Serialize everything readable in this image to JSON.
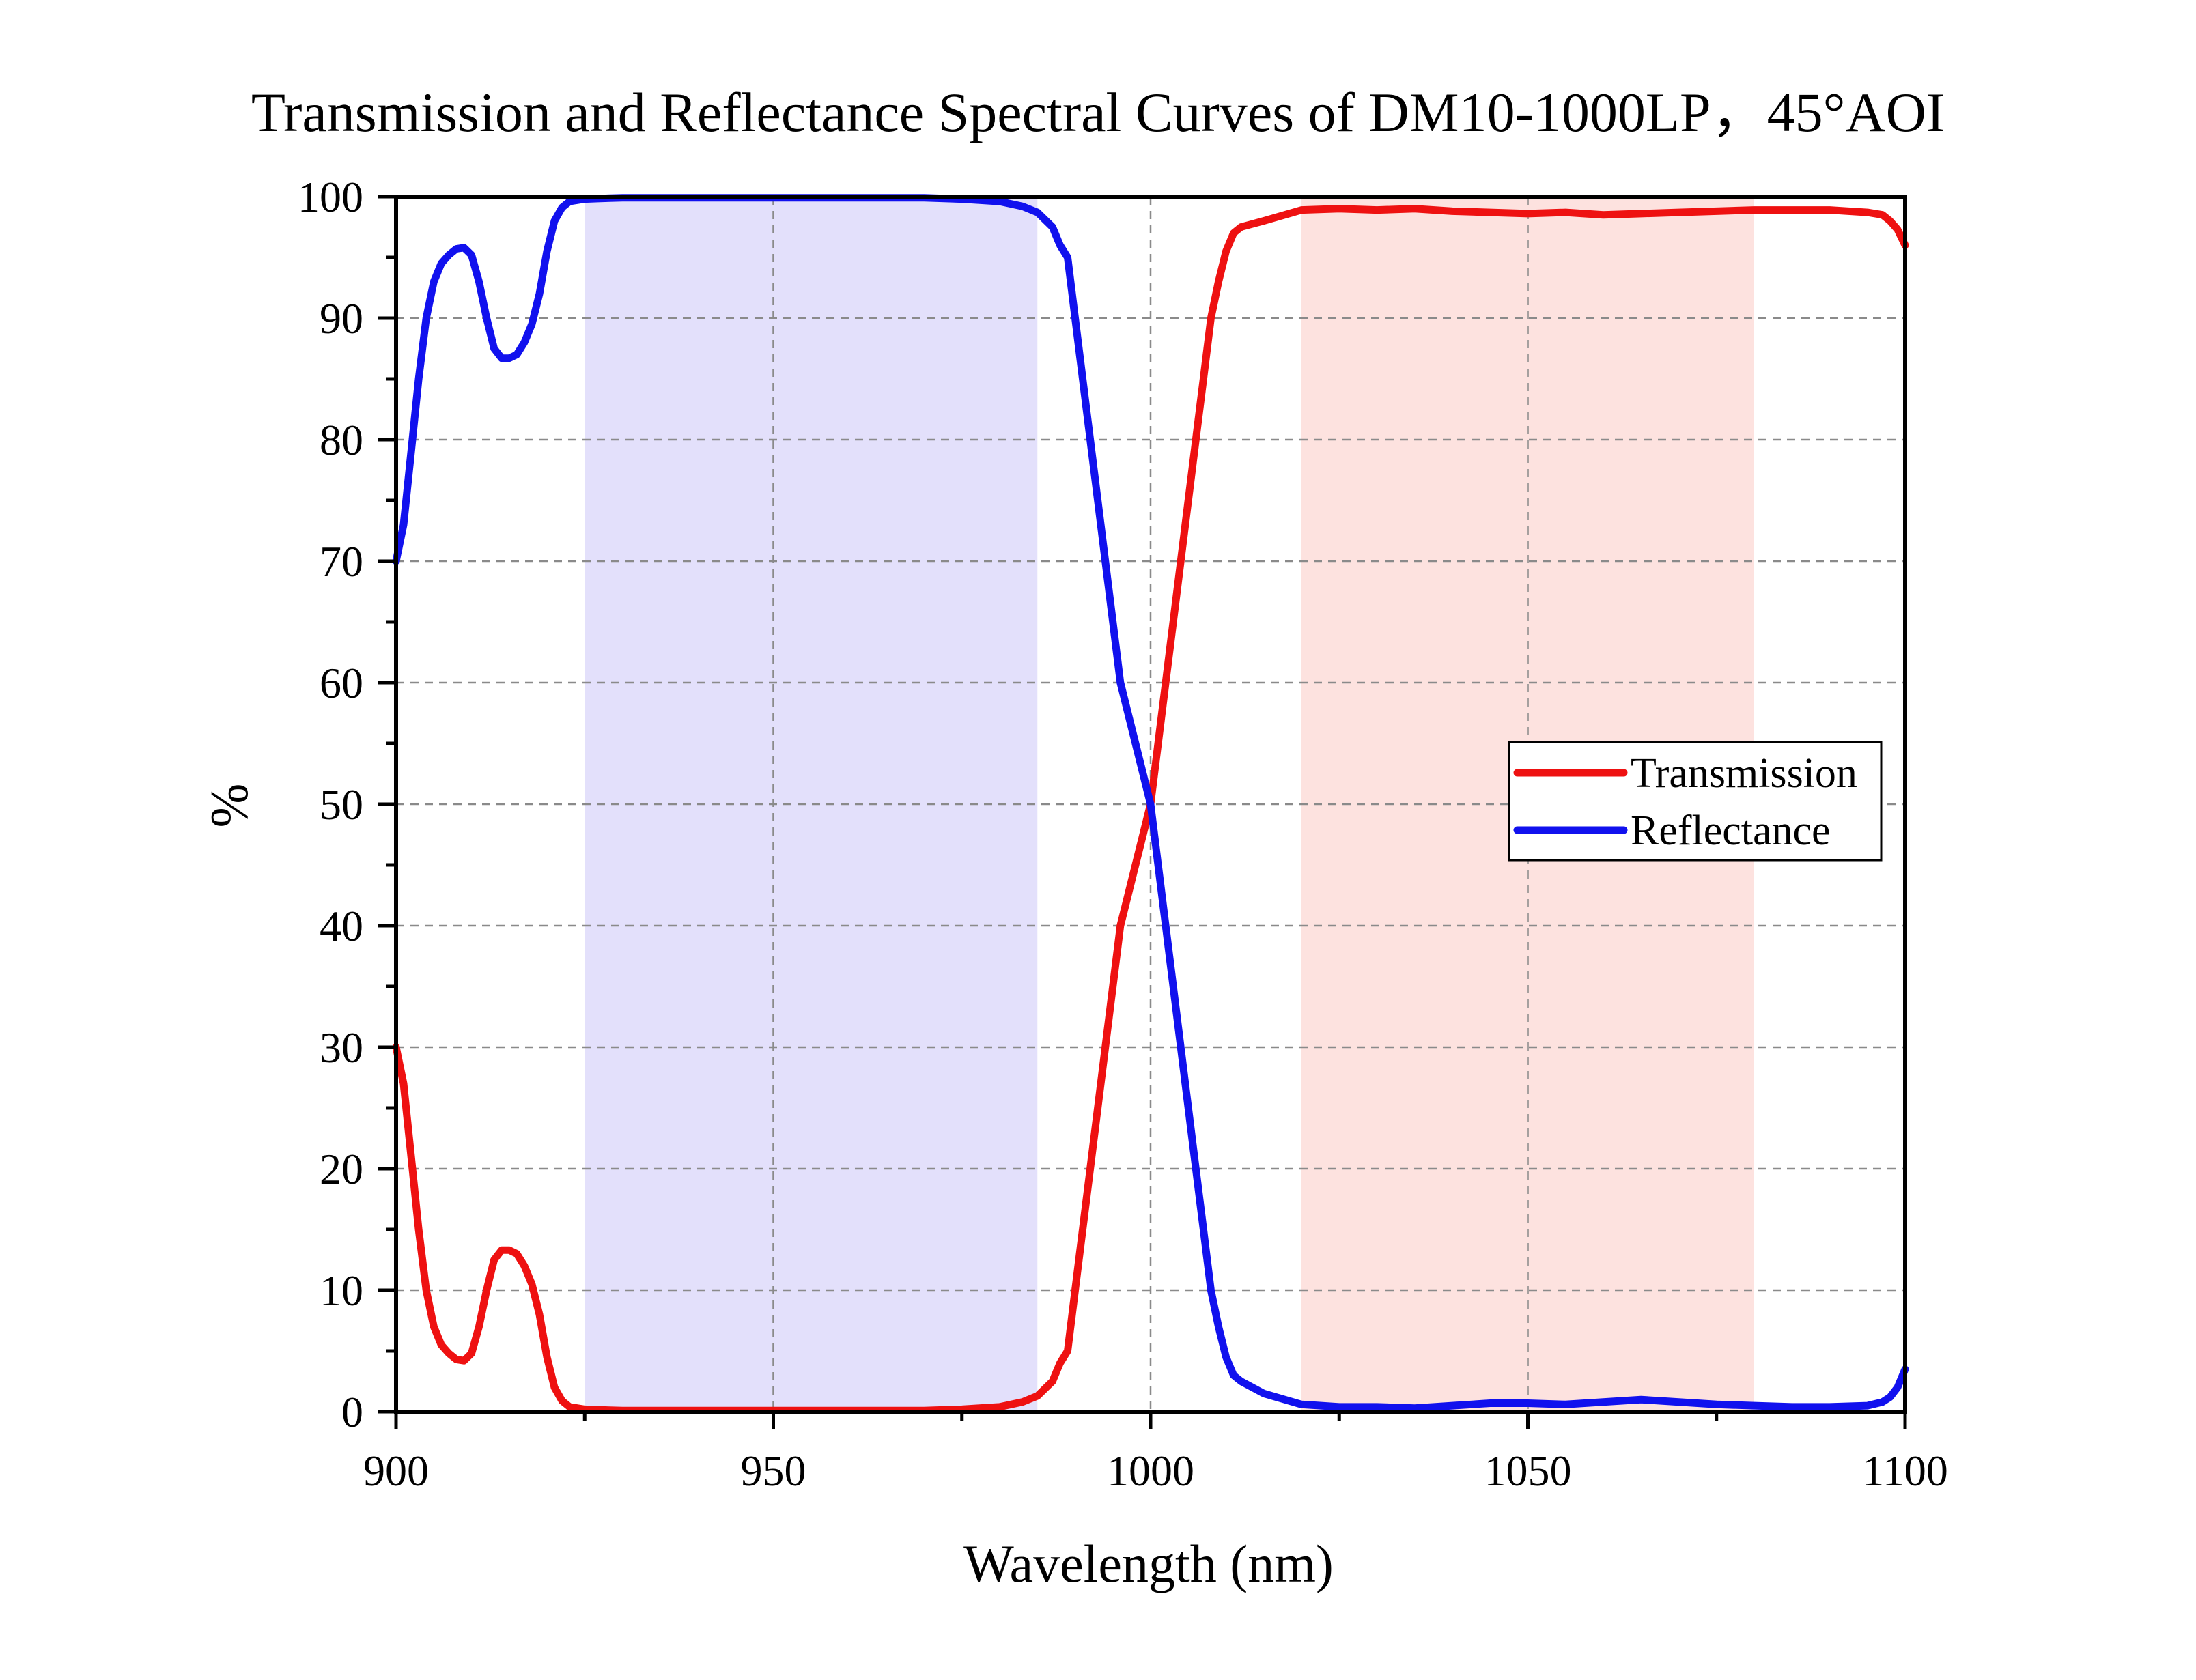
{
  "chart_data": {
    "type": "line",
    "title": "Transmission and Reflectance Spectral Curves of DM10-1000LP，45°AOI",
    "xlabel": "Wavelength (nm)",
    "ylabel": "%",
    "xlim": [
      900,
      1100
    ],
    "ylim": [
      0,
      100
    ],
    "x_ticks": [
      900,
      950,
      1000,
      1050,
      1100
    ],
    "y_ticks": [
      0,
      10,
      20,
      30,
      40,
      50,
      60,
      70,
      80,
      90,
      100
    ],
    "grid": true,
    "legend_position": "right",
    "shaded_regions": [
      {
        "x_start": 925,
        "x_end": 985,
        "color": "#e3e0fb"
      },
      {
        "x_start": 1020,
        "x_end": 1080,
        "color": "#fde2df"
      }
    ],
    "series": [
      {
        "name": "Transmission",
        "color": "#ee1111",
        "x": [
          900,
          901,
          902,
          903,
          904,
          905,
          906,
          907,
          908,
          909,
          910,
          911,
          912,
          913,
          914,
          915,
          916,
          917,
          918,
          919,
          920,
          921,
          922,
          923,
          924,
          925,
          927,
          930,
          935,
          940,
          945,
          950,
          955,
          960,
          965,
          970,
          975,
          980,
          983,
          985,
          987,
          988,
          989,
          990,
          992,
          994,
          996,
          998,
          1000,
          1002,
          1004,
          1006,
          1007,
          1008,
          1009,
          1010,
          1011,
          1012,
          1015,
          1020,
          1025,
          1030,
          1035,
          1040,
          1045,
          1050,
          1055,
          1060,
          1065,
          1070,
          1075,
          1080,
          1085,
          1090,
          1095,
          1097,
          1098,
          1099,
          1100
        ],
        "y": [
          30,
          27,
          21,
          15,
          10,
          7,
          5.5,
          4.8,
          4.3,
          4.2,
          4.8,
          7,
          10,
          12.5,
          13.3,
          13.3,
          13,
          12,
          10.5,
          8,
          4.5,
          2,
          0.9,
          0.4,
          0.3,
          0.2,
          0.15,
          0.1,
          0.1,
          0.1,
          0.1,
          0.1,
          0.1,
          0.1,
          0.1,
          0.1,
          0.2,
          0.4,
          0.8,
          1.3,
          2.5,
          4,
          5,
          10,
          20,
          30,
          40,
          45,
          50,
          60,
          70,
          80,
          85,
          90,
          93,
          95.5,
          97,
          97.5,
          98,
          98.9,
          99,
          98.9,
          99,
          98.8,
          98.7,
          98.6,
          98.7,
          98.5,
          98.6,
          98.7,
          98.8,
          98.9,
          98.9,
          98.9,
          98.7,
          98.5,
          98,
          97.3,
          96
        ]
      },
      {
        "name": "Reflectance",
        "color": "#1111ee",
        "x": [
          900,
          901,
          902,
          903,
          904,
          905,
          906,
          907,
          908,
          909,
          910,
          911,
          912,
          913,
          914,
          915,
          916,
          917,
          918,
          919,
          920,
          921,
          922,
          923,
          924,
          925,
          927,
          930,
          935,
          940,
          945,
          950,
          955,
          960,
          965,
          970,
          975,
          980,
          983,
          985,
          987,
          988,
          989,
          990,
          992,
          994,
          996,
          998,
          1000,
          1002,
          1004,
          1006,
          1007,
          1008,
          1009,
          1010,
          1011,
          1012,
          1015,
          1020,
          1025,
          1030,
          1035,
          1040,
          1045,
          1050,
          1055,
          1060,
          1065,
          1070,
          1075,
          1080,
          1085,
          1090,
          1095,
          1097,
          1098,
          1099,
          1100
        ],
        "y": [
          70,
          73,
          79,
          85,
          90,
          93,
          94.5,
          95.2,
          95.7,
          95.8,
          95.2,
          93,
          90,
          87.5,
          86.7,
          86.7,
          87,
          88,
          89.5,
          92,
          95.5,
          98,
          99.1,
          99.6,
          99.7,
          99.8,
          99.85,
          99.9,
          99.9,
          99.9,
          99.9,
          99.9,
          99.9,
          99.9,
          99.9,
          99.9,
          99.8,
          99.6,
          99.2,
          98.7,
          97.5,
          96,
          95,
          90,
          80,
          70,
          60,
          55,
          50,
          40,
          30,
          20,
          15,
          10,
          7,
          4.5,
          3,
          2.5,
          1.5,
          0.6,
          0.4,
          0.4,
          0.3,
          0.5,
          0.7,
          0.7,
          0.6,
          0.8,
          1,
          0.8,
          0.6,
          0.5,
          0.4,
          0.4,
          0.5,
          0.8,
          1.2,
          2,
          3.5
        ]
      }
    ]
  }
}
